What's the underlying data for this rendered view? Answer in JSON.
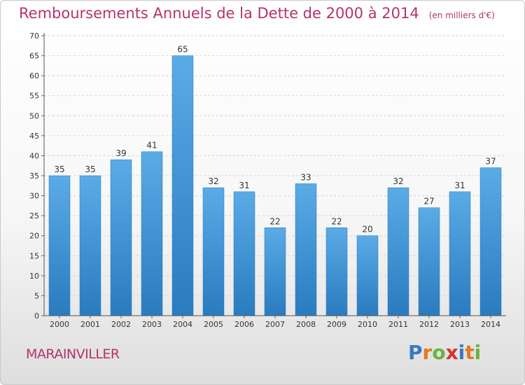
{
  "chart_data": {
    "type": "bar",
    "title": "Remboursements Annuels de la Dette de 2000 à 2014",
    "subtitle": "(en milliers d'€)",
    "categories": [
      "2000",
      "2001",
      "2002",
      "2003",
      "2004",
      "2005",
      "2006",
      "2007",
      "2008",
      "2009",
      "2010",
      "2011",
      "2012",
      "2013",
      "2014"
    ],
    "values": [
      35,
      35,
      39,
      41,
      65,
      32,
      31,
      22,
      33,
      22,
      20,
      32,
      27,
      31,
      37
    ],
    "ylim": [
      0,
      70
    ],
    "yticks": [
      0,
      5,
      10,
      15,
      20,
      25,
      30,
      35,
      40,
      45,
      50,
      55,
      60,
      65,
      70
    ],
    "xlabel": "",
    "ylabel": "",
    "grid": true,
    "legend": "none",
    "bar_color_top": "#5aabe6",
    "bar_color_bottom": "#2a7bbf"
  },
  "footer": {
    "commune": "MARAINVILLER"
  },
  "logo": {
    "letters": [
      {
        "char": "P",
        "color": "#3a78c2"
      },
      {
        "char": "r",
        "color": "#e07b1e"
      },
      {
        "char": "o",
        "color": "#6ab43c"
      },
      {
        "char": "x",
        "color": "#d6332b"
      },
      {
        "char": "i",
        "color": "#3a78c2"
      },
      {
        "char": "t",
        "color": "#e07b1e"
      },
      {
        "char": "i",
        "color": "#6ab43c"
      }
    ]
  }
}
